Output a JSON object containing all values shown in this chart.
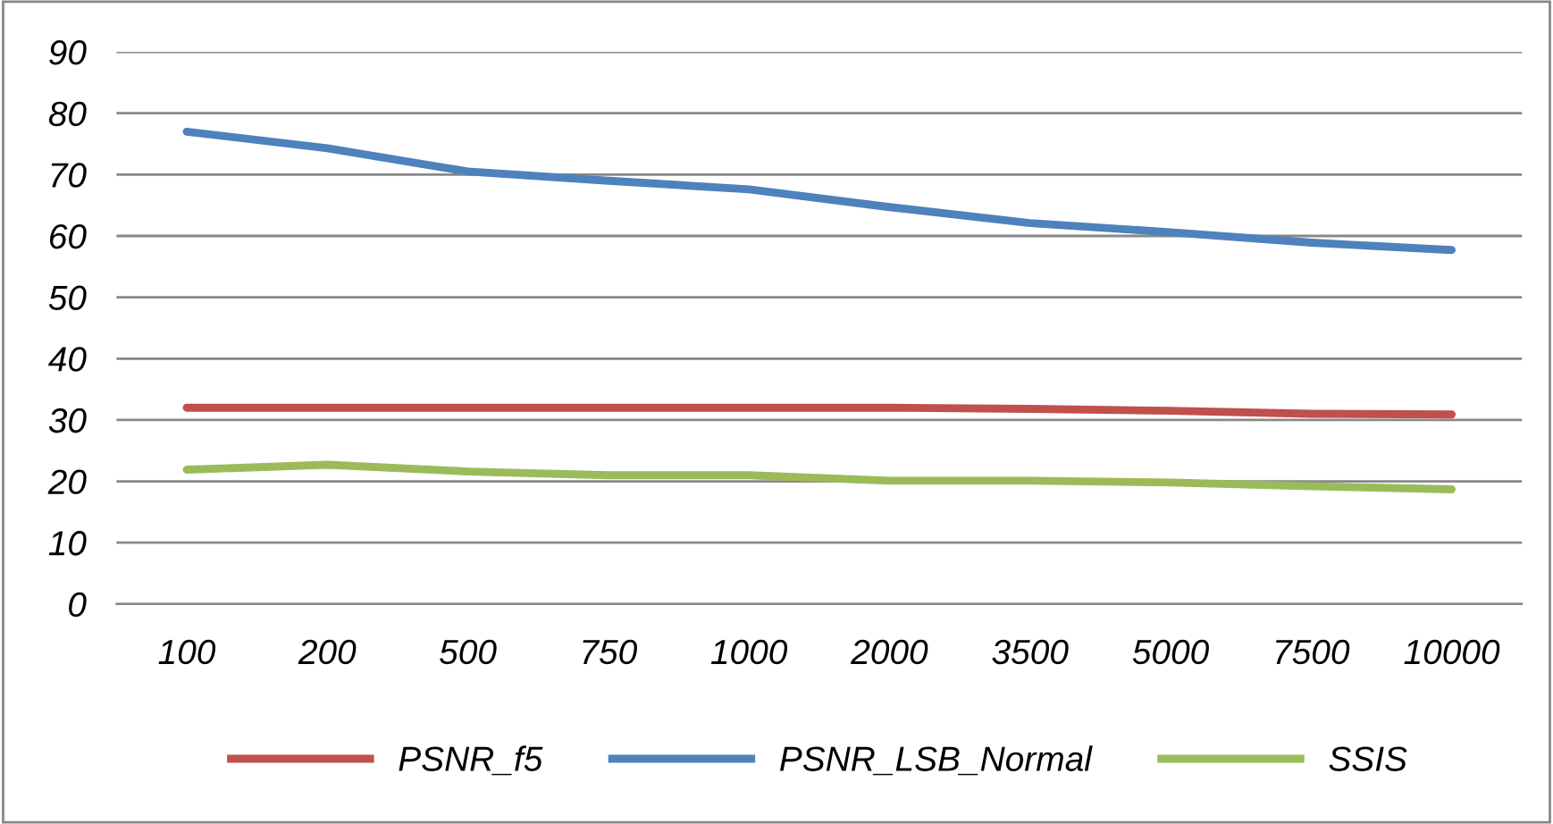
{
  "chart_data": {
    "type": "line",
    "categories": [
      "100",
      "200",
      "500",
      "750",
      "1000",
      "2000",
      "3500",
      "5000",
      "7500",
      "10000"
    ],
    "series": [
      {
        "name": "PSNR_f5",
        "color": "#c0504d",
        "values": [
          32,
          32,
          32,
          32,
          32,
          32,
          31.8,
          31.5,
          31,
          30.9
        ]
      },
      {
        "name": "PSNR_LSB_Normal",
        "color": "#4f81bd",
        "values": [
          77,
          74.3,
          70.5,
          69,
          67.6,
          64.7,
          62.1,
          60.6,
          58.9,
          57.7
        ]
      },
      {
        "name": "SSIS",
        "color": "#9bbb59",
        "values": [
          21.9,
          22.7,
          21.6,
          21,
          21,
          20.1,
          20.1,
          19.8,
          19.2,
          18.7
        ]
      }
    ],
    "ylim": [
      0,
      90
    ],
    "yticks": [
      0,
      10,
      20,
      30,
      40,
      50,
      60,
      70,
      80,
      90
    ],
    "grid": "y",
    "legend": "bottom",
    "marker": "none",
    "line_style": "solid"
  }
}
